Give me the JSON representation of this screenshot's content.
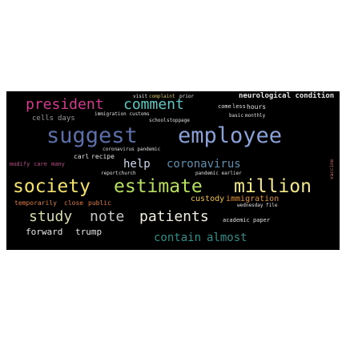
{
  "words": {
    "president": "president",
    "comment": "comment",
    "neurological_condition": "neurological condition",
    "suggest": "suggest",
    "employee": "employee",
    "cells": "cells",
    "days": "days",
    "help": "help",
    "coronavirus": "coronavirus",
    "society": "society",
    "estimate": "estimate",
    "million": "million",
    "study": "study",
    "note": "note",
    "patients": "patients",
    "forward": "forward",
    "trump": "trump",
    "contain": "contain",
    "almost": "almost",
    "custody": "custody",
    "immigration": "immigration",
    "carl": "carl",
    "recipe": "recipe",
    "modify": "modify",
    "care": "care",
    "many": "many",
    "temporarily": "temporarily",
    "close": "close",
    "public": "public",
    "academic": "academic",
    "paper": "paper",
    "come": "come",
    "less": "less",
    "hours": "hours",
    "basic": "basic",
    "monthly": "monthly",
    "immigration_customs": "immigration customs",
    "school": "school",
    "stoppage": "stoppage",
    "coronavirus_pandemic": "coronavirus pandemic",
    "report": "report",
    "church": "church",
    "pandemic_earlier": "pandemic earlier",
    "visit": "visit",
    "complaint": "complaint",
    "prior": "prior",
    "wednesday": "wednesday",
    "file": "file",
    "vaccine": "vaccine"
  },
  "colors": {
    "background": "#000000",
    "page": "#ffffff"
  }
}
